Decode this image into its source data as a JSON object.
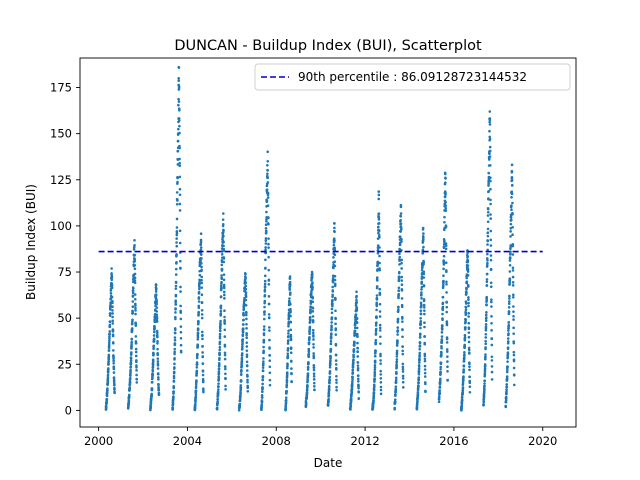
{
  "chart_data": {
    "type": "scatter",
    "title": "DUNCAN - Buildup Index (BUI), Scatterplot",
    "xlabel": "Date",
    "ylabel": "Buildup Index (BUI)",
    "xlim": [
      "1999-03-01",
      "2021-07-01"
    ],
    "ylim": [
      -9,
      191
    ],
    "x_ticks": [
      "2000",
      "2004",
      "2008",
      "2012",
      "2016",
      "2020"
    ],
    "y_ticks": [
      0,
      25,
      50,
      75,
      100,
      125,
      150,
      175
    ],
    "grid": false,
    "legend_position": "top-right",
    "point_color": "#1f77b4",
    "reference_line": {
      "label": "90th percentile : 86.09128723144532",
      "value": 86.09128723144532,
      "x_range": [
        "2000-01-01",
        "2020-01-01"
      ],
      "color": "#0000cc",
      "style": "dashed"
    },
    "series": [
      {
        "color": "#1f77b4",
        "seasons": [
          {
            "start": "2000-05-01",
            "end": "2000-09-20",
            "y": [
              0,
              4,
              9,
              15,
              22,
              30,
              40,
              50,
              58,
              66,
              74,
              60,
              45,
              30,
              18,
              10
            ]
          },
          {
            "start": "2001-05-01",
            "end": "2001-09-20",
            "y": [
              0,
              5,
              10,
              14,
              20,
              28,
              36,
              46,
              56,
              68,
              80,
              88,
              70,
              50,
              30,
              15
            ]
          },
          {
            "start": "2002-05-01",
            "end": "2002-09-20",
            "y": [
              0,
              4,
              8,
              14,
              20,
              28,
              36,
              44,
              52,
              60,
              67,
              58,
              42,
              28,
              15,
              8
            ]
          },
          {
            "start": "2003-05-01",
            "end": "2003-09-20",
            "y": [
              0,
              5,
              12,
              22,
              35,
              50,
              68,
              88,
              110,
              132,
              155,
              182,
              150,
              110,
              60,
              30
            ]
          },
          {
            "start": "2004-05-01",
            "end": "2004-09-20",
            "y": [
              0,
              4,
              10,
              18,
              26,
              36,
              46,
              58,
              68,
              78,
              86,
              91,
              70,
              45,
              25,
              10
            ]
          },
          {
            "start": "2005-05-01",
            "end": "2005-09-20",
            "y": [
              0,
              5,
              10,
              18,
              26,
              36,
              48,
              60,
              72,
              84,
              94,
              101,
              80,
              55,
              30,
              12
            ]
          },
          {
            "start": "2006-05-01",
            "end": "2006-09-20",
            "y": [
              0,
              4,
              8,
              14,
              22,
              30,
              38,
              46,
              54,
              62,
              68,
              73,
              60,
              40,
              22,
              10
            ]
          },
          {
            "start": "2007-05-01",
            "end": "2007-09-20",
            "y": [
              0,
              5,
              12,
              22,
              34,
              48,
              62,
              78,
              94,
              108,
              122,
              133,
              105,
              70,
              40,
              15
            ]
          },
          {
            "start": "2008-06-01",
            "end": "2008-09-10",
            "y": [
              0,
              5,
              12,
              20,
              30,
              40,
              50,
              60,
              72,
              55,
              35,
              15
            ]
          },
          {
            "start": "2009-05-01",
            "end": "2009-09-20",
            "y": [
              3,
              6,
              10,
              15,
              22,
              30,
              38,
              46,
              54,
              62,
              68,
              74,
              60,
              42,
              25,
              10
            ]
          },
          {
            "start": "2010-05-01",
            "end": "2010-09-20",
            "y": [
              2,
              6,
              12,
              18,
              26,
              34,
              44,
              54,
              64,
              74,
              86,
              100,
              80,
              55,
              30,
              12
            ]
          },
          {
            "start": "2011-05-01",
            "end": "2011-09-20",
            "y": [
              0,
              4,
              8,
              12,
              18,
              24,
              30,
              36,
              42,
              48,
              54,
              61,
              48,
              32,
              18,
              6
            ]
          },
          {
            "start": "2012-05-01",
            "end": "2012-09-20",
            "y": [
              0,
              3,
              6,
              12,
              20,
              30,
              40,
              52,
              66,
              80,
              96,
              113,
              90,
              60,
              30,
              8
            ]
          },
          {
            "start": "2013-05-01",
            "end": "2013-09-20",
            "y": [
              2,
              6,
              12,
              20,
              30,
              40,
              52,
              64,
              76,
              88,
              98,
              108,
              85,
              58,
              32,
              12
            ]
          },
          {
            "start": "2014-05-01",
            "end": "2014-09-20",
            "y": [
              0,
              5,
              10,
              16,
              24,
              32,
              42,
              52,
              62,
              72,
              82,
              99,
              78,
              52,
              28,
              10
            ]
          },
          {
            "start": "2015-05-01",
            "end": "2015-09-20",
            "y": [
              5,
              10,
              16,
              24,
              32,
              40,
              50,
              62,
              76,
              92,
              110,
              128,
              100,
              68,
              40,
              15
            ]
          },
          {
            "start": "2016-05-01",
            "end": "2016-09-20",
            "y": [
              0,
              4,
              8,
              14,
              20,
              28,
              36,
              46,
              56,
              66,
              76,
              86,
              70,
              48,
              28,
              10
            ]
          },
          {
            "start": "2017-05-01",
            "end": "2017-09-20",
            "y": [
              3,
              8,
              15,
              25,
              38,
              52,
              68,
              86,
              104,
              122,
              140,
              158,
              125,
              85,
              48,
              18
            ]
          },
          {
            "start": "2018-05-01",
            "end": "2018-09-20",
            "y": [
              2,
              7,
              14,
              22,
              32,
              44,
              56,
              70,
              84,
              98,
              112,
              129,
              102,
              70,
              40,
              15
            ]
          }
        ]
      }
    ]
  }
}
